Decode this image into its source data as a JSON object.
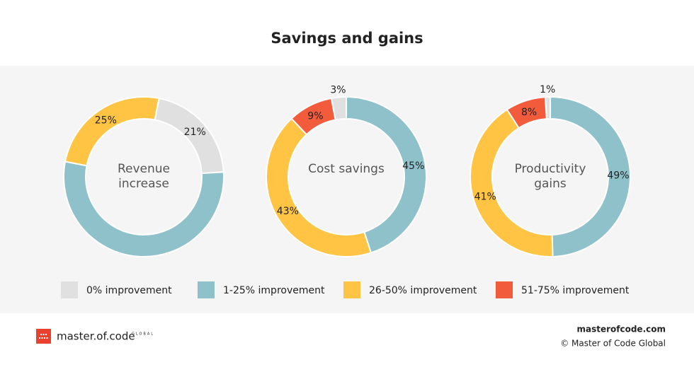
{
  "title": "Savings and gains",
  "legend": [
    {
      "name": "0% improvement",
      "color": "#e0e0e0"
    },
    {
      "name": "1-25% improvement",
      "color": "#8fc1cb"
    },
    {
      "name": "26-50% improvement",
      "color": "#ffc444"
    },
    {
      "name": "51-75% improvement",
      "color": "#f25c3c"
    }
  ],
  "chart_data": [
    {
      "type": "pie",
      "title": "Revenue increase",
      "values": [
        21,
        54,
        25,
        0
      ],
      "value_labels": [
        "21%",
        null,
        "25%",
        null
      ],
      "startangle": 11
    },
    {
      "type": "pie",
      "title": "Cost savings",
      "values": [
        3,
        45,
        43,
        9
      ],
      "value_labels": [
        "3%",
        "45%",
        "43%",
        "9%"
      ],
      "startangle": -10.8
    },
    {
      "type": "pie",
      "title": "Productivity gains",
      "values": [
        1,
        49,
        41,
        8
      ],
      "value_labels": [
        "1%",
        "49%",
        "41%",
        "8%"
      ],
      "startangle": -3.6
    }
  ],
  "footer": {
    "logo": "master.of.code",
    "logo_sub": "GLOBAL",
    "site": "masterofcode.com",
    "copyright": "© Master of Code Global"
  }
}
